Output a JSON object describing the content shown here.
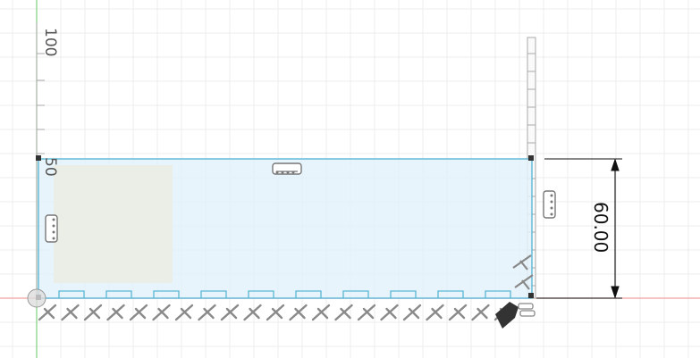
{
  "viewport": {
    "name": "sketch-viewport",
    "grid": true,
    "colors": {
      "background": "#ffffff",
      "grid_minor": "#eeeeee",
      "grid_major": "#dedede",
      "axis_y": "#7fd27f",
      "axis_x": "#f2a0a0",
      "profile_fill": "#e4f2fa",
      "profile_edge": "#5bb7d6",
      "dimension": "#111111",
      "glyph": "#8a8a8a",
      "glyph_dark": "#333333"
    }
  },
  "ruler": {
    "labels": [
      "100",
      "50"
    ]
  },
  "dimension": {
    "value": "60.00"
  }
}
